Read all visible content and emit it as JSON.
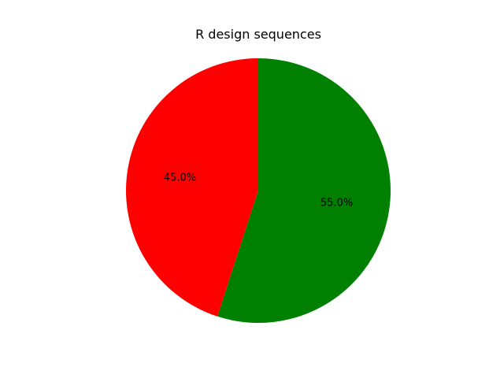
{
  "chart_data": {
    "type": "pie",
    "title": "R design sequences",
    "slices": [
      {
        "value": 45.0,
        "label_text": "45.0%",
        "color": "#ff0000"
      },
      {
        "value": 55.0,
        "label_text": "55.0%",
        "color": "#008000"
      }
    ],
    "start_angle_deg": 90,
    "direction": "counterclockwise"
  }
}
